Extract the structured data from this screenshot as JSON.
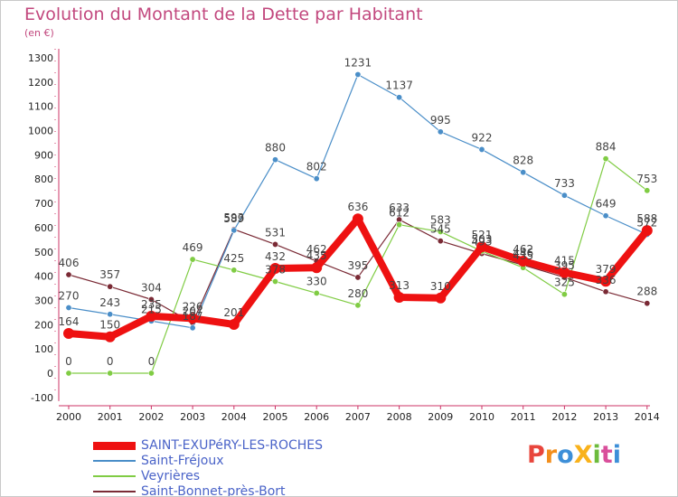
{
  "title": "Evolution du Montant de la Dette par Habitant",
  "subtitle": "(en €)",
  "logo": {
    "text": "ProXiti",
    "letters": [
      {
        "ch": "P",
        "color": "#e8453c"
      },
      {
        "ch": "r",
        "color": "#f28e1c"
      },
      {
        "ch": "o",
        "color": "#3d8fd8"
      },
      {
        "ch": "X",
        "color": "#f9b21b"
      },
      {
        "ch": "i",
        "color": "#6cbb3c"
      },
      {
        "ch": "t",
        "color": "#d94f9b"
      },
      {
        "ch": "i",
        "color": "#3d8fd8"
      }
    ]
  },
  "chart_data": {
    "type": "line",
    "title": "Evolution du Montant de la Dette par Habitant",
    "subtitle": "(en €)",
    "xlabel": "",
    "ylabel": "",
    "x": [
      "2000",
      "2001",
      "2002",
      "2003",
      "2004",
      "2005",
      "2006",
      "2007",
      "2008",
      "2009",
      "2010",
      "2011",
      "2012",
      "2013",
      "2014"
    ],
    "yticks": [
      -100,
      0,
      100,
      200,
      300,
      400,
      500,
      600,
      700,
      800,
      900,
      1000,
      1100,
      1200,
      1300
    ],
    "ylim": [
      -100,
      1300
    ],
    "grid": false,
    "legend_position": "bottom-left",
    "series": [
      {
        "name": "SAINT-EXUPéRY-LES-ROCHES",
        "color": "#ee1111",
        "values": [
          164,
          150,
          235,
          226,
          201,
          432,
          435,
          636,
          313,
          310,
          521,
          462,
          415,
          379,
          588
        ],
        "labels": [
          "164",
          "150",
          "235",
          "226",
          "201",
          "432",
          "435",
          "636",
          "313",
          "310",
          "521",
          "462",
          "415",
          "379",
          "588"
        ]
      },
      {
        "name": "Saint-Fréjoux",
        "color": "#4a8ec8",
        "values": [
          270,
          243,
          215,
          187,
          589,
          880,
          802,
          1231,
          1137,
          995,
          922,
          828,
          733,
          649,
          572
        ],
        "labels": [
          "270",
          "243",
          "215",
          "187",
          "589",
          "880",
          "802",
          "1231",
          "1137",
          "995",
          "922",
          "828",
          "733",
          "649",
          "572"
        ]
      },
      {
        "name": "Veyrières",
        "color": "#80cc44",
        "values": [
          0,
          0,
          0,
          469,
          425,
          378,
          330,
          280,
          612,
          583,
          503,
          435,
          325,
          884,
          753
        ],
        "labels": [
          "0",
          "0",
          "0",
          "469",
          "425",
          "378",
          "330",
          "280",
          "612",
          "583",
          "503",
          "435",
          "325",
          "884",
          "753"
        ]
      },
      {
        "name": "Saint-Bonnet-près-Bort",
        "color": "#7a2a35",
        "values": [
          406,
          357,
          304,
          207,
          593,
          531,
          462,
          395,
          633,
          545,
          493,
          446,
          395,
          336,
          288
        ],
        "labels": [
          "406",
          "357",
          "304",
          "207",
          "593",
          "531",
          "462",
          "395",
          "633",
          "545",
          "493",
          "446",
          "395",
          "336",
          "288"
        ]
      }
    ]
  }
}
